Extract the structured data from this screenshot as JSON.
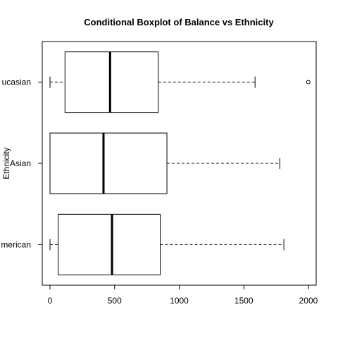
{
  "chart_data": {
    "type": "boxplot",
    "orientation": "horizontal",
    "title": "Conditional Boxplot of Balance vs Ethnicity",
    "xlabel": "",
    "ylabel": "Ethnicity",
    "xlim": [
      -60,
      2060
    ],
    "xticks": [
      0,
      500,
      1000,
      1500,
      2000
    ],
    "grid": false,
    "categories": [
      "African American",
      "Asian",
      "Caucasian"
    ],
    "category_labels": [
      "merican",
      "Asian",
      "ucasian"
    ],
    "boxes": [
      {
        "name": "African American",
        "min": 0,
        "q1": 63,
        "median": 480,
        "q3": 853,
        "max": 1810,
        "outliers": []
      },
      {
        "name": "Asian",
        "min": 0,
        "q1": 0,
        "median": 414,
        "q3": 905,
        "max": 1779,
        "outliers": []
      },
      {
        "name": "Caucasian",
        "min": 0,
        "q1": 116,
        "median": 465,
        "q3": 838,
        "max": 1587,
        "outliers": [
          1999
        ]
      }
    ]
  }
}
